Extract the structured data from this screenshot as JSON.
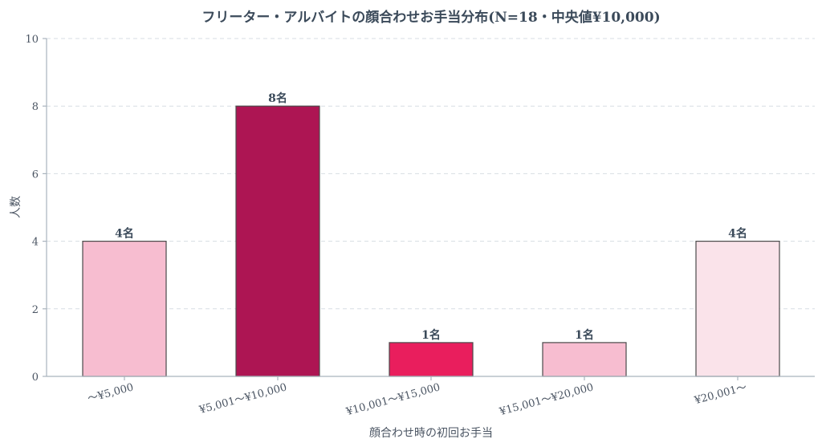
{
  "chart_data": {
    "type": "bar",
    "title": "フリーター・アルバイトの顔合わせお手当分布(N=18・中央値¥10,000)",
    "xlabel": "顔合わせ時の初回お手当",
    "ylabel": "人数",
    "categories": [
      "〜¥5,000",
      "¥5,001〜¥10,000",
      "¥10,001〜¥15,000",
      "¥15,001〜¥20,000",
      "¥20,001〜"
    ],
    "values": [
      4,
      8,
      1,
      1,
      4
    ],
    "data_labels": [
      "4名",
      "8名",
      "1名",
      "1名",
      "4名"
    ],
    "colors": [
      "#f7bdd0",
      "#ad1553",
      "#e91e5d",
      "#f7bdd0",
      "#fae3ea"
    ],
    "ylim": [
      0,
      10
    ],
    "yticks": [
      0,
      2,
      4,
      6,
      8,
      10
    ],
    "grid": true
  }
}
